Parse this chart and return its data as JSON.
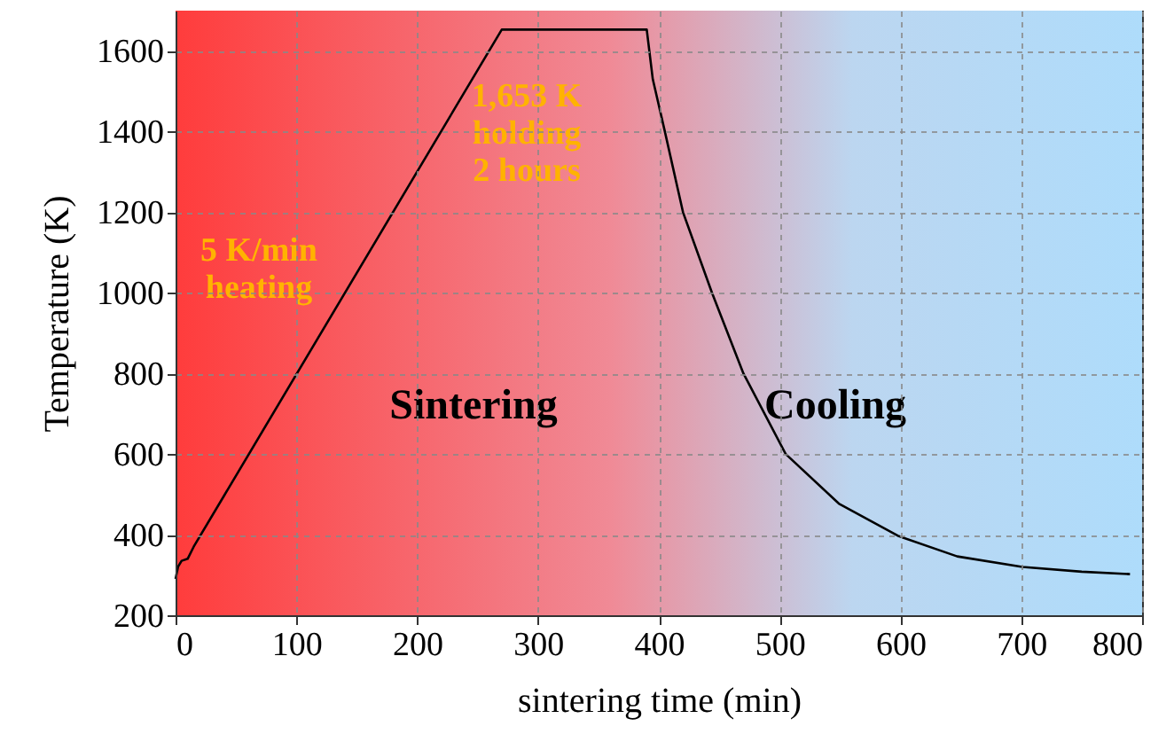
{
  "chart_data": {
    "type": "line",
    "xlabel": "sintering time (min)",
    "ylabel": "Temperature (K)",
    "x": [
      0,
      2,
      5,
      10,
      15,
      270,
      390,
      395,
      405,
      420,
      444,
      470,
      505,
      549,
      598,
      647,
      701,
      750,
      790
    ],
    "series": [
      {
        "color": "#000000",
        "values": [
          290,
          320,
          335,
          340,
          370,
          1653,
          1653,
          1530,
          1400,
          1200,
          1000,
          800,
          600,
          477,
          397,
          346,
          320,
          308,
          302
        ]
      }
    ],
    "xlim": [
      0,
      800
    ],
    "xticks": [
      0,
      100,
      200,
      300,
      400,
      500,
      600,
      700,
      800
    ],
    "ylim": [
      200,
      1700
    ],
    "yticks": [
      200,
      400,
      600,
      800,
      {
        "value": 1000,
        "label": "1000"
      },
      {
        "value": 1200,
        "label": "1200"
      },
      {
        "value": 1400,
        "label": "1400"
      },
      {
        "value": 1600,
        "label": "1600"
      }
    ],
    "grid": true,
    "line_style": "solid",
    "marker": "none",
    "annotations": [
      "5 K/min\nheating",
      "1,653 K\nholding\n2 hours",
      "Sintering",
      "Cooling"
    ]
  }
}
